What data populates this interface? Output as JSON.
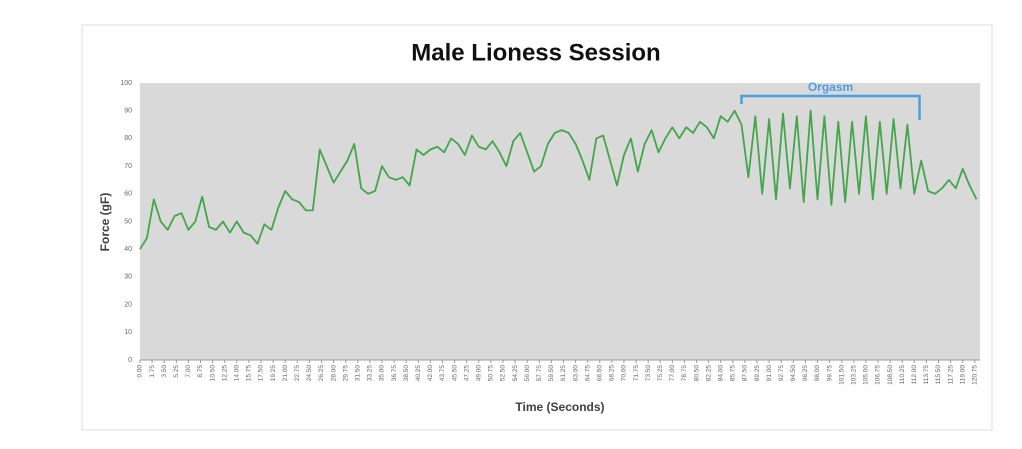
{
  "chart_data": {
    "type": "line",
    "title": "Male Lioness Session",
    "x_label": "Time (Seconds)",
    "y_label": "Force (gF)",
    "color": "#43a64b",
    "background": "#d9d9d9",
    "grid": false,
    "x": [
      0,
      1,
      2,
      3,
      4,
      5,
      6,
      7,
      8,
      9,
      10,
      11,
      12,
      13,
      14,
      15,
      16,
      17,
      18,
      19,
      20,
      21,
      22,
      23,
      24,
      25,
      26,
      27,
      28,
      29,
      30,
      31,
      32,
      33,
      34,
      35,
      36,
      37,
      38,
      39,
      40,
      41,
      42,
      43,
      44,
      45,
      46,
      47,
      48,
      49,
      50,
      51,
      52,
      53,
      54,
      55,
      56,
      57,
      58,
      59,
      60,
      61,
      62,
      63,
      64,
      65,
      66,
      67,
      68,
      69,
      70,
      71,
      72,
      73,
      74,
      75,
      76,
      77,
      78,
      79,
      80,
      81,
      82,
      83,
      84,
      85,
      86,
      87,
      88,
      89,
      90,
      91,
      92,
      93,
      94,
      95,
      96,
      97,
      98,
      99,
      100,
      101,
      102,
      103,
      104,
      105,
      106,
      107,
      108,
      109,
      110,
      111,
      112,
      113,
      114,
      115,
      116,
      117,
      118,
      119,
      120,
      121
    ],
    "values": [
      40,
      44,
      58,
      50,
      47,
      52,
      53,
      47,
      50,
      59,
      48,
      47,
      50,
      46,
      50,
      46,
      45,
      42,
      49,
      47,
      55,
      61,
      58,
      57,
      54,
      54,
      76,
      70,
      64,
      68,
      72,
      78,
      62,
      60,
      61,
      70,
      66,
      65,
      66,
      63,
      76,
      74,
      76,
      77,
      75,
      80,
      78,
      74,
      81,
      77,
      76,
      79,
      75,
      70,
      79,
      82,
      75,
      68,
      70,
      78,
      82,
      83,
      82,
      78,
      72,
      65,
      80,
      81,
      72,
      63,
      74,
      80,
      68,
      78,
      83,
      75,
      80,
      84,
      80,
      84,
      82,
      86,
      84,
      80,
      88,
      86,
      90,
      85,
      66,
      88,
      60,
      87,
      58,
      89,
      62,
      88,
      57,
      90,
      58,
      88,
      56,
      86,
      57,
      86,
      60,
      88,
      58,
      86,
      60,
      87,
      62,
      85,
      60,
      72,
      61,
      60,
      62,
      65,
      62,
      69,
      63,
      58
    ],
    "xlim": [
      0,
      121.5
    ],
    "xticks": [
      {
        "value": 0,
        "label": "0.00"
      },
      1.75,
      {
        "value": 3.5,
        "label": "3.50"
      },
      5.25,
      {
        "value": 7,
        "label": "7.00"
      },
      8.75,
      {
        "value": 10.5,
        "label": "10.50"
      },
      12.25,
      {
        "value": 14,
        "label": "14.00"
      },
      15.75,
      {
        "value": 17.5,
        "label": "17.50"
      },
      19.25,
      {
        "value": 21,
        "label": "21.00"
      },
      22.75,
      {
        "value": 24.5,
        "label": "24.50"
      },
      26.25,
      {
        "value": 28,
        "label": "28.00"
      },
      29.75,
      {
        "value": 31.5,
        "label": "31.50"
      },
      33.25,
      {
        "value": 35,
        "label": "35.00"
      },
      36.75,
      {
        "value": 38.5,
        "label": "38.50"
      },
      40.25,
      {
        "value": 42,
        "label": "42.00"
      },
      43.75,
      {
        "value": 45.5,
        "label": "45.50"
      },
      47.25,
      {
        "value": 49,
        "label": "49.00"
      },
      50.75,
      {
        "value": 52.5,
        "label": "52.50"
      },
      54.25,
      {
        "value": 56,
        "label": "56.00"
      },
      57.75,
      {
        "value": 59.5,
        "label": "59.50"
      },
      61.25,
      {
        "value": 63,
        "label": "63.00"
      },
      64.75,
      {
        "value": 66.5,
        "label": "66.50"
      },
      68.25,
      {
        "value": 70,
        "label": "70.00"
      },
      71.75,
      {
        "value": 73.5,
        "label": "73.50"
      },
      75.25,
      {
        "value": 77,
        "label": "77.00"
      },
      78.75,
      {
        "value": 80.5,
        "label": "80.50"
      },
      82.25,
      {
        "value": 84,
        "label": "84.00"
      },
      85.75,
      {
        "value": 87.5,
        "label": "87.50"
      },
      89.25,
      {
        "value": 91,
        "label": "91.00"
      },
      92.75,
      {
        "value": 94.5,
        "label": "94.50"
      },
      96.25,
      {
        "value": 98,
        "label": "98.00"
      },
      99.75,
      {
        "value": 101.5,
        "label": "101.50"
      },
      103.25,
      {
        "value": 105,
        "label": "105.00"
      },
      106.75,
      {
        "value": 108.5,
        "label": "108.50"
      },
      110.25,
      {
        "value": 112,
        "label": "112.00"
      },
      113.75,
      {
        "value": 115.5,
        "label": "115.50"
      },
      117.25,
      {
        "value": 119,
        "label": "119.00"
      },
      120.75
    ],
    "ylim": [
      0,
      100
    ],
    "yticks": [
      0,
      10,
      20,
      30,
      40,
      50,
      60,
      70,
      80,
      90,
      100
    ],
    "annotation": {
      "text": "Orgasm",
      "xrange": [
        87,
        112.75
      ],
      "color": "#4a9fe0"
    }
  }
}
